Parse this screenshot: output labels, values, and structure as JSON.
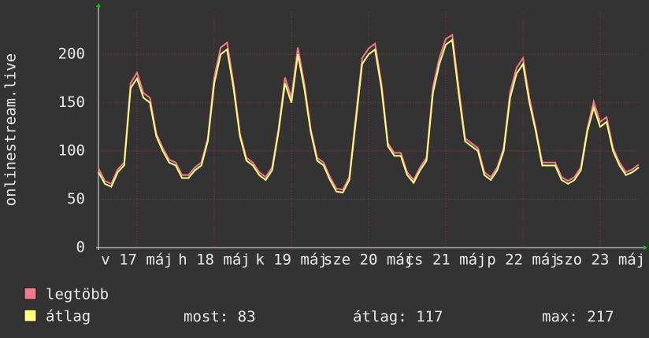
{
  "chart_data": {
    "type": "line",
    "y_label": "onlinestream.live",
    "xlim": [
      0,
      168
    ],
    "xticks": [
      {
        "value": 12,
        "label": "v 17 máj"
      },
      {
        "value": 36,
        "label": "h 18 máj"
      },
      {
        "value": 60,
        "label": "k 19 máj"
      },
      {
        "value": 84,
        "label": "sze 20 máj"
      },
      {
        "value": 108,
        "label": "cs 21 máj"
      },
      {
        "value": 132,
        "label": "p 22 máj"
      },
      {
        "value": 156,
        "label": "szo 23 máj"
      }
    ],
    "ylim": [
      0,
      244
    ],
    "yticks": [
      0,
      50,
      100,
      150,
      200
    ],
    "grid": true,
    "x": [
      0,
      2,
      4,
      6,
      8,
      10,
      12,
      14,
      16,
      18,
      20,
      22,
      24,
      26,
      28,
      30,
      32,
      34,
      36,
      38,
      40,
      42,
      44,
      46,
      48,
      50,
      52,
      54,
      56,
      58,
      60,
      62,
      64,
      66,
      68,
      70,
      72,
      74,
      76,
      78,
      80,
      82,
      84,
      86,
      88,
      90,
      92,
      94,
      96,
      98,
      100,
      102,
      104,
      106,
      108,
      110,
      112,
      114,
      116,
      118,
      120,
      122,
      124,
      126,
      128,
      130,
      132,
      134,
      136,
      138,
      140,
      142,
      144,
      146,
      148,
      150,
      152,
      154,
      156,
      158,
      160,
      162,
      164,
      166,
      168
    ],
    "series": [
      {
        "name": "legtöbb",
        "color": "#f5788a",
        "values": [
          82,
          69,
          66,
          81,
          88,
          170,
          181,
          160,
          155,
          118,
          103,
          91,
          88,
          75,
          75,
          83,
          88,
          113,
          176,
          207,
          212,
          170,
          118,
          93,
          88,
          78,
          73,
          83,
          123,
          176,
          155,
          207,
          170,
          123,
          93,
          88,
          73,
          61,
          60,
          73,
          135,
          196,
          206,
          211,
          170,
          108,
          98,
          98,
          78,
          70,
          83,
          93,
          166,
          196,
          216,
          220,
          166,
          113,
          108,
          103,
          78,
          73,
          83,
          103,
          161,
          186,
          196,
          155,
          123,
          88,
          88,
          88,
          73,
          69,
          73,
          83,
          123,
          151,
          130,
          135,
          103,
          88,
          78,
          81,
          86
        ]
      },
      {
        "name": "átlag",
        "color": "#ffff80",
        "values": [
          78,
          66,
          63,
          78,
          85,
          165,
          175,
          155,
          150,
          115,
          100,
          88,
          85,
          72,
          72,
          80,
          85,
          110,
          170,
          200,
          205,
          165,
          115,
          90,
          85,
          75,
          70,
          80,
          120,
          170,
          150,
          200,
          165,
          120,
          90,
          85,
          70,
          58,
          57,
          70,
          130,
          190,
          200,
          205,
          165,
          105,
          95,
          95,
          75,
          67,
          80,
          90,
          160,
          190,
          210,
          215,
          160,
          110,
          105,
          100,
          75,
          70,
          80,
          100,
          155,
          180,
          190,
          150,
          120,
          85,
          85,
          85,
          70,
          66,
          70,
          80,
          120,
          145,
          125,
          130,
          100,
          85,
          75,
          78,
          83
        ]
      }
    ],
    "stats": [
      {
        "label": "most:",
        "value": 83
      },
      {
        "label": "átlag:",
        "value": 117
      },
      {
        "label": "max:",
        "value": 217
      }
    ]
  }
}
